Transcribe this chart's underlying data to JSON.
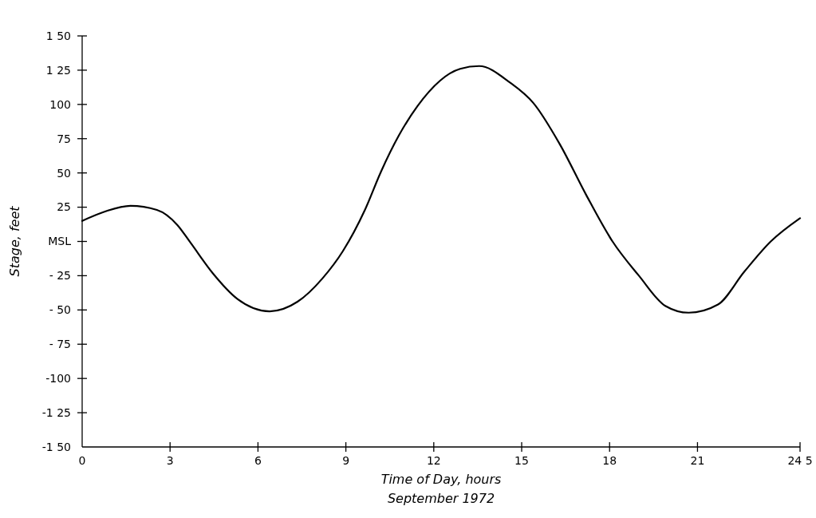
{
  "chart_data": {
    "type": "line",
    "xlabel": "Time of Day, hours",
    "ylabel": "Stage, feet",
    "annotations": [
      "September 1972"
    ],
    "xlim": [
      0,
      24.5
    ],
    "xticks": [
      0,
      3,
      6,
      9,
      12,
      15,
      18,
      21,
      {
        "value": 24.5,
        "label": "24 5"
      }
    ],
    "ylim": [
      -150,
      150
    ],
    "yticks": [
      {
        "value": 150,
        "label": "1 50"
      },
      {
        "value": 125,
        "label": "1 25"
      },
      {
        "value": 100,
        "label": "100"
      },
      75,
      50,
      25,
      {
        "value": 0,
        "label": "MSL"
      },
      {
        "value": -25,
        "label": "- 25"
      },
      {
        "value": -50,
        "label": "- 50"
      },
      {
        "value": -75,
        "label": "- 75"
      },
      {
        "value": -100,
        "label": "-100"
      },
      {
        "value": -125,
        "label": "-1 25"
      },
      {
        "value": -150,
        "label": "-1 50"
      }
    ],
    "grid": false,
    "marker": "none",
    "line_style": "solid",
    "series": [
      {
        "color": "#000000",
        "x": [
          0,
          0.8,
          1.65,
          2.55,
          3.25,
          3.7,
          4.45,
          5.3,
          6.4,
          7.35,
          8.2,
          8.9,
          9.65,
          10.2,
          10.8,
          11.45,
          12.9,
          13.55,
          14.6,
          15.4,
          16.3,
          17.2,
          18.1,
          19,
          19.9,
          20.7,
          21.7,
          22.6,
          23.5,
          24.5
        ],
        "values": [
          15,
          22,
          26,
          23,
          12,
          -1,
          -23,
          -42,
          -51,
          -44,
          -27,
          -7,
          23,
          51,
          77,
          99,
          126,
          128,
          116,
          101,
          71,
          34,
          0,
          -25,
          -47,
          -52,
          -46,
          -22,
          0,
          17
        ]
      }
    ]
  }
}
